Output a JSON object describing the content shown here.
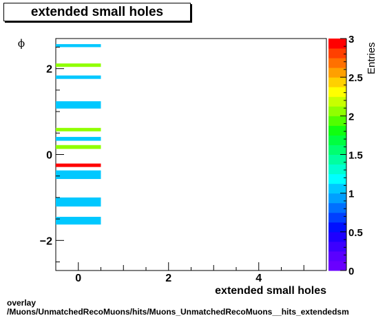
{
  "title": "extended small holes",
  "footer": {
    "line1": "overlay",
    "line2": "/Muons/UnmatchedRecoMuons/hits/Muons_UnmatchedRecoMuons__hits_extendedsm"
  },
  "chart_data": {
    "type": "heatmap",
    "xlabel": "extended small holes",
    "ylabel": "ϕ",
    "zlabel": "Entries",
    "xlim": [
      -0.5,
      5.5
    ],
    "ylim": [
      -2.7,
      2.7
    ],
    "zlim": [
      0,
      3
    ],
    "x_ticks": [
      0,
      2,
      4
    ],
    "y_ticks": [
      -2,
      0,
      2
    ],
    "z_ticks": [
      0,
      0.5,
      1,
      1.5,
      2,
      2.5,
      3
    ],
    "x_bin": [
      -0.5,
      0.5
    ],
    "cells": [
      {
        "y0": 2.5,
        "y1": 2.57,
        "value": 1
      },
      {
        "y0": 2.04,
        "y1": 2.12,
        "value": 2
      },
      {
        "y0": 1.76,
        "y1": 1.84,
        "value": 1
      },
      {
        "y0": 1.07,
        "y1": 1.24,
        "value": 1
      },
      {
        "y0": 0.54,
        "y1": 0.62,
        "value": 2
      },
      {
        "y0": 0.32,
        "y1": 0.41,
        "value": 1
      },
      {
        "y0": 0.13,
        "y1": 0.22,
        "value": 2
      },
      {
        "y0": -0.29,
        "y1": -0.21,
        "value": 3
      },
      {
        "y0": -0.57,
        "y1": -0.37,
        "value": 1
      },
      {
        "y0": -1.21,
        "y1": -1.0,
        "value": 1
      },
      {
        "y0": -1.63,
        "y1": -1.45,
        "value": 1
      }
    ],
    "palette": [
      "#6a00ff",
      "#5a00ff",
      "#3c00ff",
      "#1e00ff",
      "#0010ff",
      "#0040ff",
      "#0070ff",
      "#00a0ff",
      "#00c8ff",
      "#00ffff",
      "#00ffd0",
      "#00ffa0",
      "#00ff70",
      "#00ff40",
      "#10ff10",
      "#50ff00",
      "#90ff00",
      "#c8ff00",
      "#ffff00",
      "#ffd000",
      "#ffa000",
      "#ff7000",
      "#ff4000",
      "#ff0000"
    ]
  }
}
